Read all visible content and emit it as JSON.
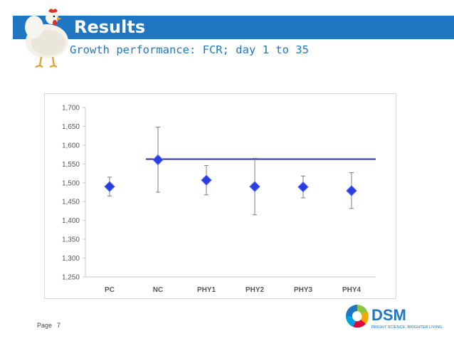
{
  "header": {
    "title": "Results",
    "subtitle": "Growth performance: FCR; day 1 to 35"
  },
  "footer": {
    "page_label": "Page",
    "page_number": "7"
  },
  "logo": {
    "name": "DSM",
    "tagline": "BRIGHT SCIENCE. BRIGHTER LIVING.",
    "colors": [
      "#1f76c2",
      "#8cc63f",
      "#f7a800",
      "#e4003b",
      "#00a0df"
    ]
  },
  "chart_data": {
    "type": "scatter",
    "title": "",
    "xlabel": "",
    "ylabel": "",
    "categories": [
      "PC",
      "NC",
      "PHY1",
      "PHY2",
      "PHY3",
      "PHY4"
    ],
    "series": [
      {
        "values": [
          1.49,
          1.561,
          1.507,
          1.49,
          1.489,
          1.479
        ],
        "error_low": [
          1.465,
          1.475,
          1.468,
          1.415,
          1.46,
          1.432
        ],
        "error_high": [
          1.515,
          1.648,
          1.546,
          1.565,
          1.518,
          1.527
        ],
        "color": "#2a3dde",
        "marker": "diamond"
      }
    ],
    "reference_line": {
      "value": 1.563,
      "from_category": "NC",
      "to_category": "PHY4",
      "color": "#2a2ab3"
    },
    "ylim": [
      1.25,
      1.7
    ],
    "yticks": [
      1.25,
      1.3,
      1.35,
      1.4,
      1.45,
      1.5,
      1.55,
      1.6,
      1.65,
      1.7
    ],
    "ytick_labels": [
      "1,250",
      "1,300",
      "1,350",
      "1,400",
      "1,450",
      "1,500",
      "1,550",
      "1,600",
      "1,650",
      "1,700"
    ],
    "grid": false,
    "legend": "none"
  }
}
